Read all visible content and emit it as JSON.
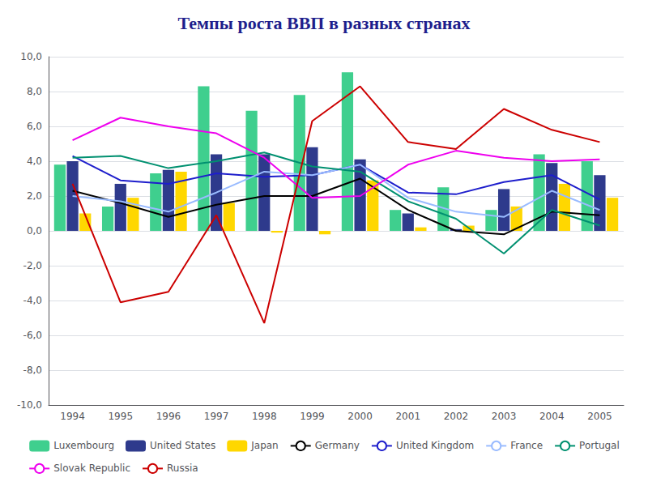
{
  "chart_data": {
    "type": "bar",
    "title": "Темпы роста ВВП в разных странах",
    "categories": [
      "1994",
      "1995",
      "1996",
      "1997",
      "1998",
      "1999",
      "2000",
      "2001",
      "2002",
      "2003",
      "2004",
      "2005"
    ],
    "series": [
      {
        "name": "Luxembourg",
        "type": "bar",
        "color": "#3FCF8E",
        "values": [
          3.8,
          1.4,
          3.3,
          8.3,
          6.9,
          7.8,
          9.1,
          1.2,
          2.5,
          1.2,
          4.4,
          4.0
        ]
      },
      {
        "name": "United States",
        "type": "bar",
        "color": "#2E3A8C",
        "values": [
          4.0,
          2.7,
          3.5,
          4.4,
          4.4,
          4.8,
          4.1,
          1.0,
          0.1,
          2.4,
          3.9,
          3.2
        ]
      },
      {
        "name": "Japan",
        "type": "bar",
        "color": "#FFD700",
        "values": [
          1.0,
          1.9,
          3.4,
          1.6,
          -0.1,
          -0.2,
          2.9,
          0.2,
          0.3,
          1.4,
          2.7,
          1.9
        ]
      },
      {
        "name": "Germany",
        "type": "line",
        "color": "#000000",
        "values": [
          2.3,
          1.6,
          0.8,
          1.5,
          2.0,
          2.0,
          3.0,
          1.2,
          0.0,
          -0.2,
          1.1,
          0.9
        ]
      },
      {
        "name": "United Kingdom",
        "type": "line",
        "color": "#1E1ECC",
        "values": [
          4.3,
          2.9,
          2.7,
          3.3,
          3.1,
          3.2,
          3.8,
          2.2,
          2.1,
          2.8,
          3.2,
          1.8
        ]
      },
      {
        "name": "France",
        "type": "line",
        "color": "#99BBFF",
        "values": [
          2.0,
          1.7,
          1.1,
          2.2,
          3.4,
          3.2,
          3.8,
          1.9,
          1.1,
          0.8,
          2.3,
          1.2
        ]
      },
      {
        "name": "Portugal",
        "type": "line",
        "color": "#009070",
        "values": [
          4.2,
          4.3,
          3.6,
          4.0,
          4.5,
          3.7,
          3.4,
          1.7,
          0.7,
          -1.3,
          1.2,
          0.3
        ]
      },
      {
        "name": "Slovak Republic",
        "type": "line",
        "color": "#EE00EE",
        "values": [
          5.2,
          6.5,
          6.0,
          5.6,
          4.2,
          1.9,
          2.0,
          3.8,
          4.6,
          4.2,
          4.0,
          4.1
        ]
      },
      {
        "name": "Russia",
        "type": "line",
        "color": "#CC0000",
        "values": [
          2.7,
          -4.1,
          -3.5,
          0.9,
          -5.3,
          6.3,
          8.3,
          5.1,
          4.7,
          7.0,
          5.8,
          5.1
        ]
      }
    ],
    "ylim": [
      -10.0,
      10.0
    ],
    "yticks": [
      {
        "value": -10.0,
        "label": "-10,0"
      },
      {
        "value": -8.0,
        "label": "-8,0"
      },
      {
        "value": -6.0,
        "label": "-6,0"
      },
      {
        "value": -4.0,
        "label": "-4,0"
      },
      {
        "value": -2.0,
        "label": "-2,0"
      },
      {
        "value": 0.0,
        "label": "0,0"
      },
      {
        "value": 2.0,
        "label": "2,0"
      },
      {
        "value": 4.0,
        "label": "4,0"
      },
      {
        "value": 6.0,
        "label": "6,0"
      },
      {
        "value": 8.0,
        "label": "8,0"
      },
      {
        "value": 10.0,
        "label": "10,0"
      }
    ],
    "grid": true,
    "legend": "bottom"
  }
}
